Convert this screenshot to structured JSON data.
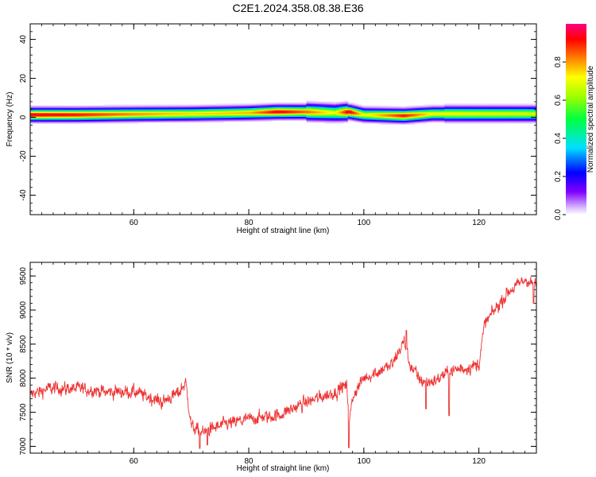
{
  "title": "C2E1.2024.358.08.38.E36",
  "chart_data": [
    {
      "type": "heatmap",
      "xlabel": "Height of straight line (km)",
      "ylabel": "Frequency (Hz)",
      "xlim": [
        42,
        130
      ],
      "ylim": [
        -50,
        48
      ],
      "x_ticks": [
        60,
        80,
        100,
        120
      ],
      "y_ticks": [
        -40,
        -20,
        0,
        20,
        40
      ],
      "colorbar": {
        "label": "Normalized spectral amplitude",
        "range": [
          0,
          1
        ],
        "ticks": [
          0.0,
          0.2,
          0.4,
          0.6,
          0.8
        ]
      },
      "ridge": [
        {
          "x": 43,
          "freq": 1.5,
          "amp": 0.95
        },
        {
          "x": 50,
          "freq": 1.5,
          "amp": 0.92
        },
        {
          "x": 60,
          "freq": 1.8,
          "amp": 0.82
        },
        {
          "x": 70,
          "freq": 2.0,
          "amp": 0.75
        },
        {
          "x": 80,
          "freq": 2.5,
          "amp": 0.78
        },
        {
          "x": 85,
          "freq": 3.0,
          "amp": 0.95
        },
        {
          "x": 90,
          "freq": 3.0,
          "amp": 0.85
        },
        {
          "x": 95,
          "freq": 2.5,
          "amp": 0.7
        },
        {
          "x": 97.5,
          "freq": 3.0,
          "amp": 0.98
        },
        {
          "x": 100,
          "freq": 1.5,
          "amp": 0.7
        },
        {
          "x": 107,
          "freq": 1.0,
          "amp": 0.92
        },
        {
          "x": 112,
          "freq": 2.0,
          "amp": 0.72
        },
        {
          "x": 120,
          "freq": 2.0,
          "amp": 0.7
        },
        {
          "x": 130,
          "freq": 2.0,
          "amp": 0.68
        }
      ]
    },
    {
      "type": "line",
      "xlabel": "Height of straight line (km)",
      "ylabel": "SNR (10 * v/v)",
      "xlim": [
        42,
        130
      ],
      "ylim": [
        6900,
        9700
      ],
      "x_ticks": [
        60,
        80,
        100,
        120
      ],
      "y_ticks": [
        7000,
        7500,
        8000,
        8500,
        9000,
        9500
      ],
      "series": [
        {
          "color": "#ee3333",
          "trend": [
            [
              42,
              7750
            ],
            [
              45,
              7850
            ],
            [
              50,
              7850
            ],
            [
              55,
              7800
            ],
            [
              60,
              7800
            ],
            [
              65,
              7650
            ],
            [
              68,
              7800
            ],
            [
              69,
              7950
            ],
            [
              70,
              7300
            ],
            [
              72,
              7200
            ],
            [
              75,
              7300
            ],
            [
              80,
              7400
            ],
            [
              85,
              7450
            ],
            [
              90,
              7650
            ],
            [
              95,
              7800
            ],
            [
              97,
              7900
            ],
            [
              97.5,
              7400
            ],
            [
              98.2,
              7750
            ],
            [
              100,
              8000
            ],
            [
              105,
              8200
            ],
            [
              107,
              8550
            ],
            [
              108,
              8200
            ],
            [
              110,
              7950
            ],
            [
              112,
              7950
            ],
            [
              115,
              8100
            ],
            [
              120,
              8200
            ],
            [
              121,
              8800
            ],
            [
              125,
              9250
            ],
            [
              128,
              9450
            ],
            [
              130,
              9350
            ]
          ],
          "noise": 110,
          "spikes": [
            [
              97.4,
              6980
            ],
            [
              110.8,
              7550
            ],
            [
              114.8,
              7450
            ],
            [
              71.5,
              6970
            ],
            [
              72.8,
              7020
            ],
            [
              129.5,
              9100
            ],
            [
              107.4,
              8700
            ]
          ]
        }
      ]
    }
  ]
}
